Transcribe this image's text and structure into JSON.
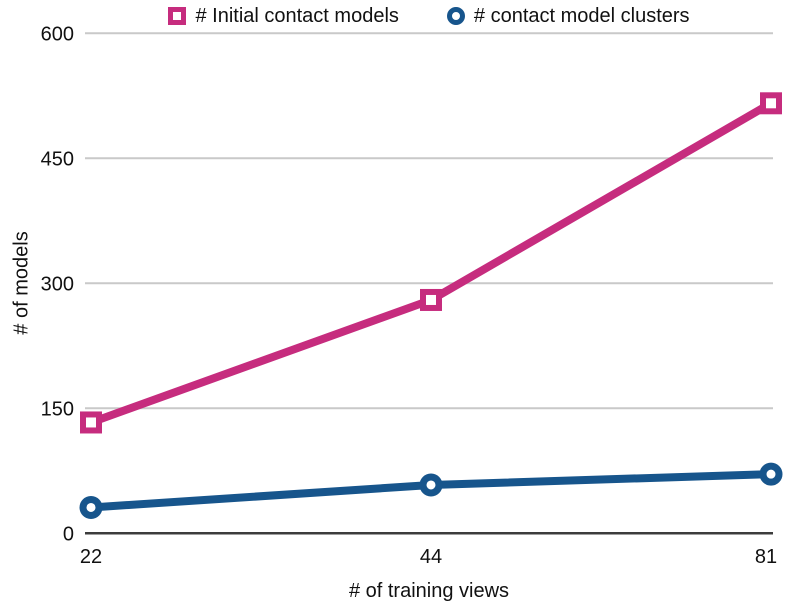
{
  "chart_data": {
    "type": "line",
    "categories": [
      "22",
      "44",
      "81"
    ],
    "x_scale": "categorical-even-spacing",
    "series": [
      {
        "name": "# Initial contact models",
        "values": [
          133,
          280,
          516
        ],
        "color": "#C62C7E",
        "marker": "square"
      },
      {
        "name": "# contact model clusters",
        "values": [
          31,
          58,
          71
        ],
        "color": "#17558C",
        "marker": "circle"
      }
    ],
    "title": "",
    "xlabel": "# of training views",
    "ylabel": "# of models",
    "ylim": [
      0,
      600
    ],
    "y_ticks": [
      0,
      150,
      300,
      450,
      600
    ],
    "grid": "horizontal",
    "legend_position": "top-center",
    "colors": {
      "gridline": "#C9C9C9",
      "axis_line": "#3C3C3C",
      "text": "#111111",
      "marker_fill": "#FFFFFF"
    }
  }
}
